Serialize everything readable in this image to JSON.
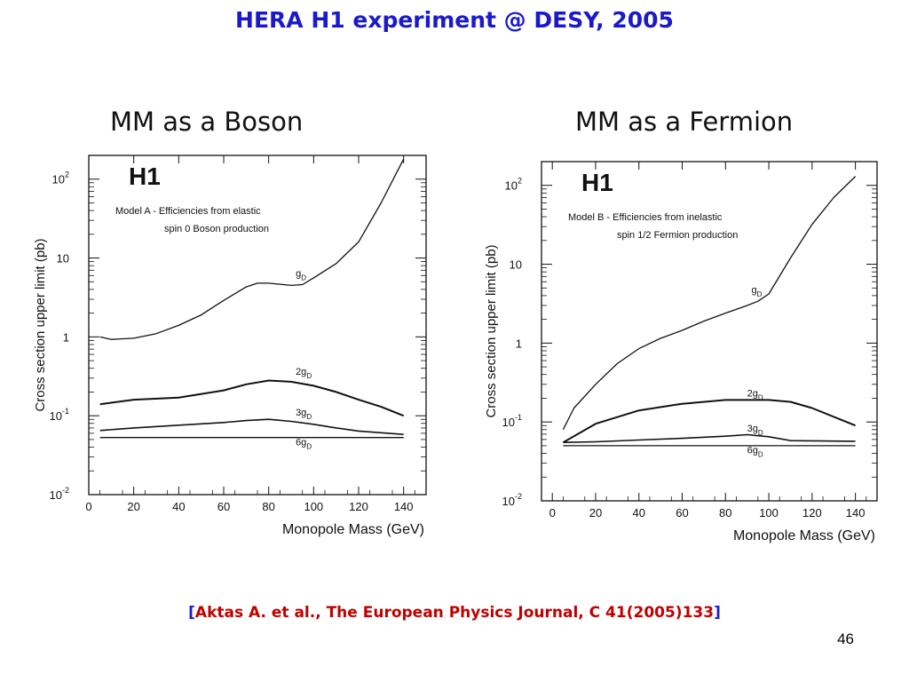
{
  "slide": {
    "title": "HERA H1 experiment @ DESY, 2005",
    "citation_open": "[",
    "citation_text": "Aktas A.  et al., The European Physics Journal, C 41(2005)133",
    "citation_close": "]",
    "page_number": "46"
  },
  "chart_data": [
    {
      "type": "line",
      "panel_title": "MM as a Boson",
      "logo": "H1",
      "annotation": [
        "Model A - Efficiencies from elastic",
        "spin 0 Boson production"
      ],
      "xlabel": "Monopole Mass (GeV)",
      "ylabel": "Cross section upper limit (pb)",
      "xlim": [
        0,
        150
      ],
      "ylim": [
        0.01,
        200
      ],
      "y_scale": "log",
      "x_ticks": [
        "0",
        "20",
        "40",
        "60",
        "80",
        "100",
        "120",
        "140"
      ],
      "y_ticks": [
        {
          "value": 100,
          "base": "10",
          "exp": "2"
        },
        {
          "value": 10,
          "base": "10",
          "exp": ""
        },
        {
          "value": 1,
          "base": "1",
          "exp": ""
        },
        {
          "value": 0.1,
          "base": "10",
          "exp": "-1"
        },
        {
          "value": 0.01,
          "base": "10",
          "exp": "-2"
        }
      ],
      "series": [
        {
          "name": "g",
          "sub": "D",
          "x": [
            5,
            10,
            20,
            30,
            40,
            50,
            60,
            70,
            75,
            80,
            90,
            95,
            100,
            110,
            120,
            130,
            140
          ],
          "y": [
            1.0,
            0.93,
            0.96,
            1.1,
            1.4,
            1.9,
            2.9,
            4.3,
            4.8,
            4.8,
            4.5,
            4.6,
            5.6,
            8.5,
            16,
            50,
            180
          ]
        },
        {
          "name": "2g",
          "sub": "D",
          "x": [
            5,
            20,
            40,
            60,
            70,
            80,
            90,
            100,
            110,
            120,
            130,
            140
          ],
          "y": [
            0.14,
            0.16,
            0.17,
            0.21,
            0.25,
            0.28,
            0.27,
            0.24,
            0.2,
            0.16,
            0.13,
            0.1
          ]
        },
        {
          "name": "3g",
          "sub": "D",
          "x": [
            5,
            20,
            40,
            60,
            70,
            80,
            90,
            100,
            110,
            120,
            140
          ],
          "y": [
            0.065,
            0.07,
            0.076,
            0.082,
            0.087,
            0.09,
            0.085,
            0.078,
            0.07,
            0.064,
            0.058
          ]
        },
        {
          "name": "6g",
          "sub": "D",
          "x": [
            5,
            20,
            40,
            60,
            80,
            100,
            120,
            140
          ],
          "y": [
            0.053,
            0.053,
            0.053,
            0.053,
            0.053,
            0.053,
            0.053,
            0.053
          ]
        }
      ],
      "labels": [
        {
          "text": "g",
          "sub": "D",
          "x": 92,
          "y": 5.8
        },
        {
          "text": "2g",
          "sub": "D",
          "x": 92,
          "y": 0.33
        },
        {
          "text": "3g",
          "sub": "D",
          "x": 92,
          "y": 0.1
        },
        {
          "text": "6g",
          "sub": "D",
          "x": 92,
          "y": 0.042
        }
      ]
    },
    {
      "type": "line",
      "panel_title": "MM as a Fermion",
      "logo": "H1",
      "annotation": [
        "Model B - Efficiencies from inelastic",
        "spin 1/2 Fermion production"
      ],
      "xlabel": "Monopole Mass (GeV)",
      "ylabel": "Cross  section upper limit (pb)",
      "xlim": [
        -5,
        150
      ],
      "ylim": [
        0.01,
        200
      ],
      "y_scale": "log",
      "x_ticks": [
        "0",
        "20",
        "40",
        "60",
        "80",
        "100",
        "120",
        "140"
      ],
      "y_ticks": [
        {
          "value": 100,
          "base": "10",
          "exp": "2"
        },
        {
          "value": 10,
          "base": "10",
          "exp": ""
        },
        {
          "value": 1,
          "base": "1",
          "exp": ""
        },
        {
          "value": 0.1,
          "base": "10",
          "exp": "-1"
        },
        {
          "value": 0.01,
          "base": "10",
          "exp": "-2"
        }
      ],
      "series": [
        {
          "name": "g",
          "sub": "D",
          "x": [
            5,
            10,
            20,
            30,
            40,
            50,
            60,
            70,
            80,
            90,
            95,
            100,
            110,
            120,
            130,
            140
          ],
          "y": [
            0.08,
            0.15,
            0.3,
            0.55,
            0.85,
            1.15,
            1.45,
            1.9,
            2.4,
            3.0,
            3.4,
            4.2,
            12,
            32,
            70,
            130
          ]
        },
        {
          "name": "2g",
          "sub": "D",
          "x": [
            5,
            20,
            40,
            60,
            80,
            100,
            110,
            120,
            140
          ],
          "y": [
            0.055,
            0.095,
            0.14,
            0.17,
            0.19,
            0.19,
            0.18,
            0.15,
            0.09
          ]
        },
        {
          "name": "3g",
          "sub": "D",
          "x": [
            5,
            20,
            40,
            60,
            80,
            90,
            100,
            110,
            140
          ],
          "y": [
            0.055,
            0.056,
            0.059,
            0.062,
            0.066,
            0.069,
            0.065,
            0.058,
            0.057
          ]
        },
        {
          "name": "6g",
          "sub": "D",
          "x": [
            5,
            20,
            40,
            60,
            80,
            100,
            120,
            140
          ],
          "y": [
            0.05,
            0.05,
            0.05,
            0.05,
            0.05,
            0.05,
            0.05,
            0.05
          ]
        }
      ],
      "labels": [
        {
          "text": "g",
          "sub": "D",
          "x": 92,
          "y": 4.3
        },
        {
          "text": "2g",
          "sub": "D",
          "x": 90,
          "y": 0.21
        },
        {
          "text": "3g",
          "sub": "D",
          "x": 90,
          "y": 0.076
        },
        {
          "text": "6g",
          "sub": "D",
          "x": 90,
          "y": 0.04
        }
      ]
    }
  ]
}
